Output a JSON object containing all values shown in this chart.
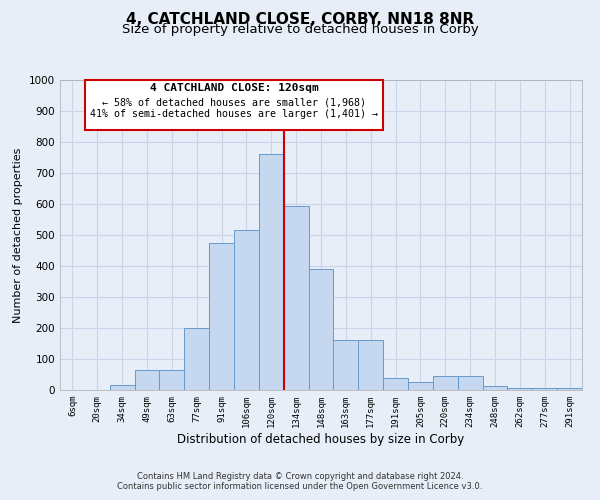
{
  "title": "4, CATCHLAND CLOSE, CORBY, NN18 8NR",
  "subtitle": "Size of property relative to detached houses in Corby",
  "xlabel": "Distribution of detached houses by size in Corby",
  "ylabel": "Number of detached properties",
  "footer1": "Contains HM Land Registry data © Crown copyright and database right 2024.",
  "footer2": "Contains public sector information licensed under the Open Government Licence v3.0.",
  "annotation_title": "4 CATCHLAND CLOSE: 120sqm",
  "annotation_line1": "← 58% of detached houses are smaller (1,968)",
  "annotation_line2": "41% of semi-detached houses are larger (1,401) →",
  "bar_labels": [
    "6sqm",
    "20sqm",
    "34sqm",
    "49sqm",
    "63sqm",
    "77sqm",
    "91sqm",
    "106sqm",
    "120sqm",
    "134sqm",
    "148sqm",
    "163sqm",
    "177sqm",
    "191sqm",
    "205sqm",
    "220sqm",
    "234sqm",
    "248sqm",
    "262sqm",
    "277sqm",
    "291sqm"
  ],
  "bar_values": [
    0,
    0,
    15,
    65,
    65,
    200,
    475,
    515,
    760,
    595,
    390,
    160,
    160,
    40,
    25,
    45,
    45,
    13,
    7,
    5,
    5
  ],
  "bar_color": "#c5d8f0",
  "bar_edge_color": "#6699cc",
  "vline_color": "#cc0000",
  "vline_index": 8,
  "ylim": [
    0,
    1000
  ],
  "yticks": [
    0,
    100,
    200,
    300,
    400,
    500,
    600,
    700,
    800,
    900,
    1000
  ],
  "annotation_box_color": "#cc0000",
  "grid_color": "#c8d4e8",
  "bg_color": "#e8eef8",
  "title_fontsize": 11,
  "subtitle_fontsize": 9.5
}
